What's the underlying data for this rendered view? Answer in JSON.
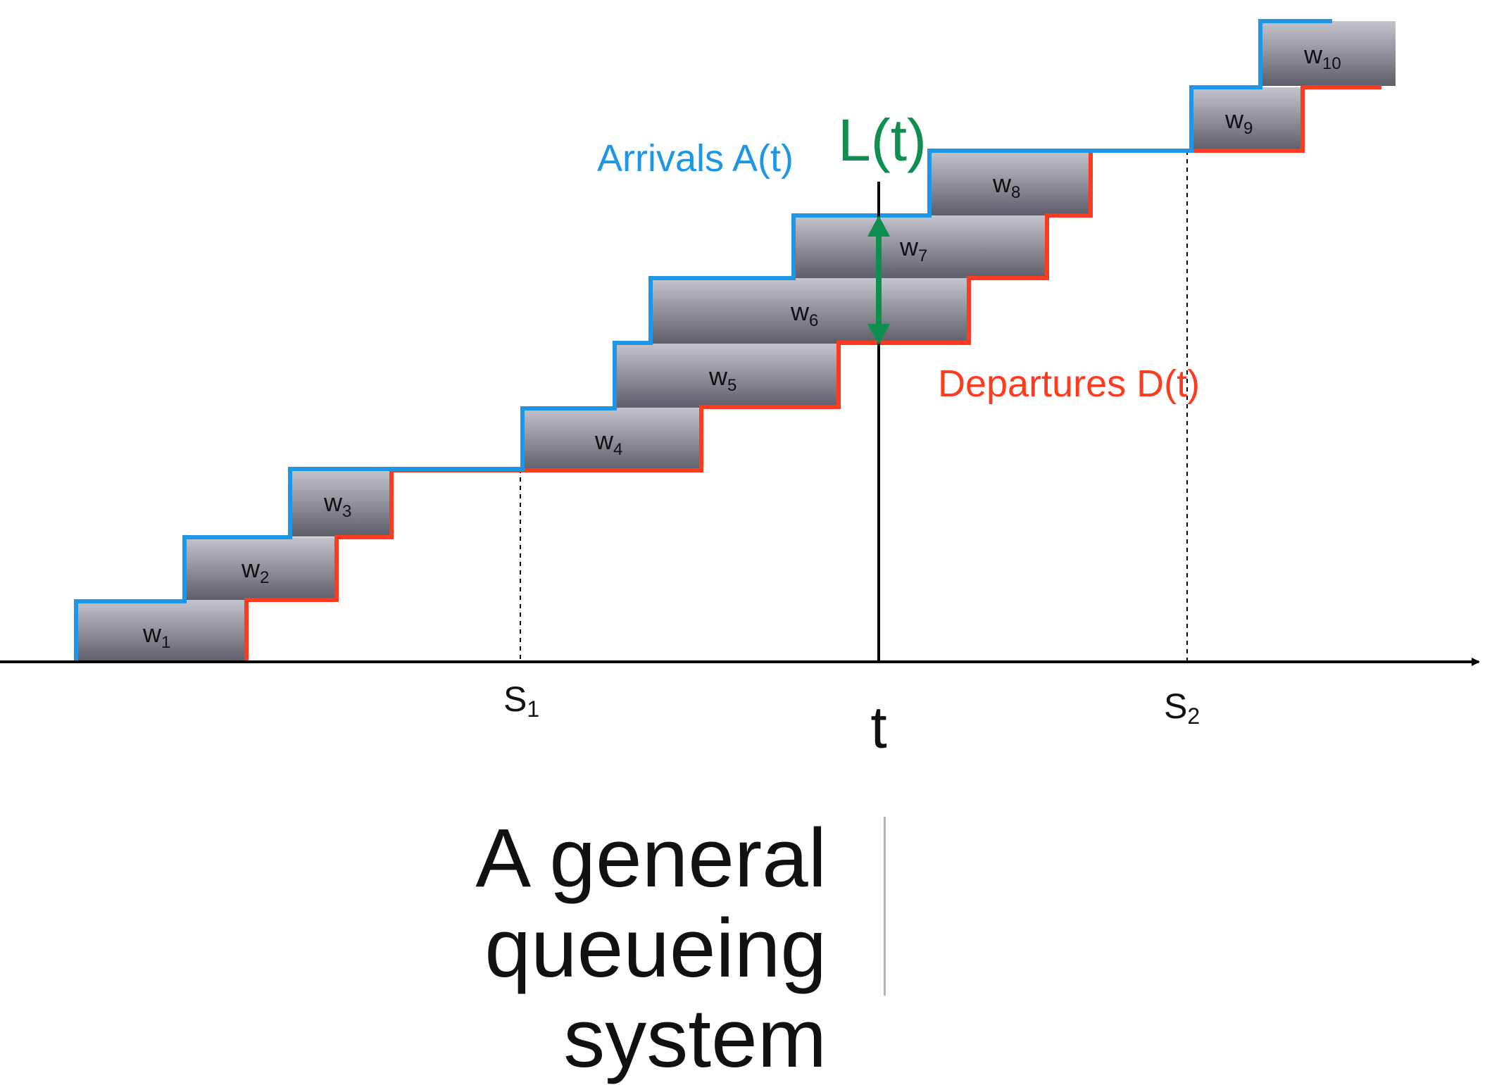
{
  "diagram": {
    "arrivals_label": "Arrivals A(t)",
    "departures_label": "Departures D(t)",
    "queue_length_label": "L(t)",
    "time_label": "t",
    "s1_label": {
      "main": "S",
      "sub": "1"
    },
    "s2_label": {
      "main": "S",
      "sub": "2"
    },
    "customers": [
      {
        "main": "w",
        "sub": "1"
      },
      {
        "main": "w",
        "sub": "2"
      },
      {
        "main": "w",
        "sub": "3"
      },
      {
        "main": "w",
        "sub": "4"
      },
      {
        "main": "w",
        "sub": "5"
      },
      {
        "main": "w",
        "sub": "6"
      },
      {
        "main": "w",
        "sub": "7"
      },
      {
        "main": "w",
        "sub": "8"
      },
      {
        "main": "w",
        "sub": "9"
      },
      {
        "main": "w",
        "sub": "10"
      }
    ],
    "colors": {
      "arrivals": "#1e96e6",
      "departures": "#ff3b1f",
      "queue_length": "#0f8f4f",
      "axis": "#000000",
      "block_top": "#c4c4cc",
      "block_bottom": "#5e5e6a"
    }
  },
  "title": {
    "line1": "A general queueing",
    "line2": "system"
  }
}
